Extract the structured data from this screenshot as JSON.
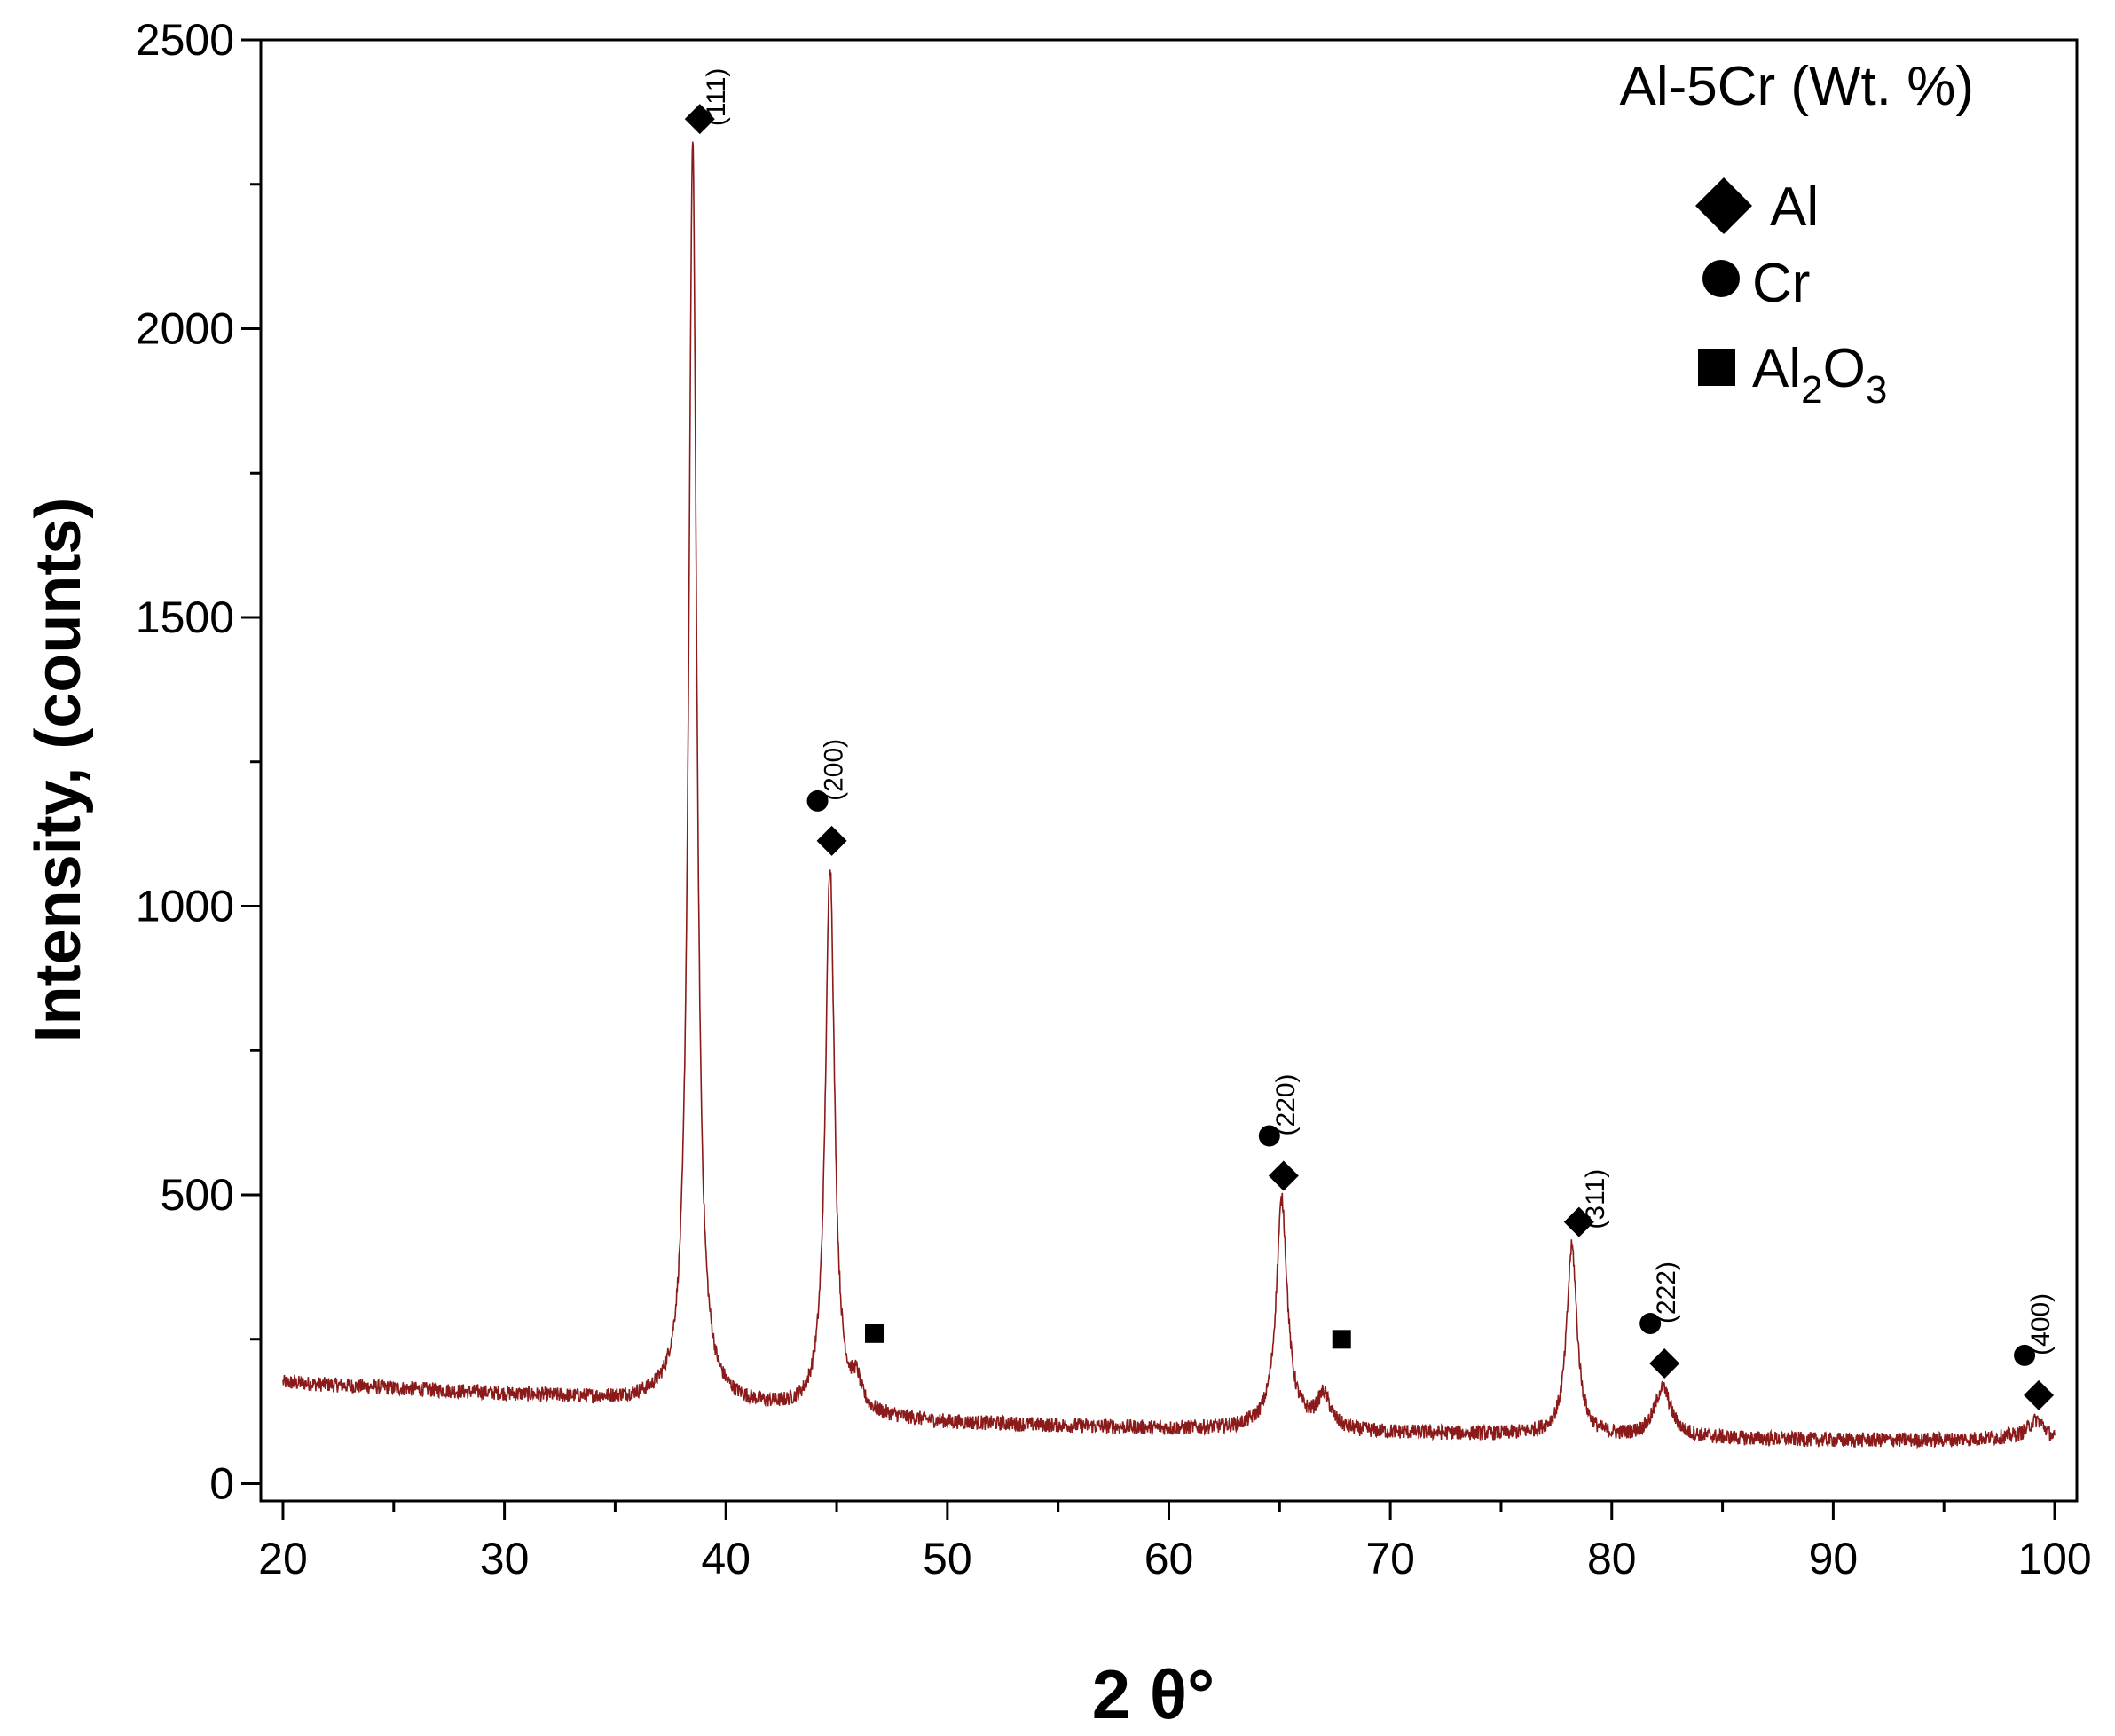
{
  "chart_data": {
    "type": "line",
    "title": "",
    "xlabel": "2 θ°",
    "ylabel": "Intensity, (counts)",
    "xlim": [
      19,
      101
    ],
    "ylim": [
      -30,
      2500
    ],
    "x_ticks": [
      20,
      30,
      40,
      50,
      60,
      70,
      80,
      90,
      100
    ],
    "y_ticks": [
      0,
      500,
      1000,
      1500,
      2000,
      2500
    ],
    "grid": false,
    "line_color": "#8b1a1a",
    "annotation_text": "Al-5Cr (Wt. %)",
    "legend_position": "top-right",
    "legend": [
      {
        "marker": "diamond",
        "label": "Al"
      },
      {
        "marker": "circle",
        "label": "Cr"
      },
      {
        "marker": "square",
        "label": "Al",
        "sub1": "2",
        "mid": "O",
        "sub2": "3"
      }
    ],
    "baseline": [
      [
        20,
        175
      ],
      [
        25,
        165
      ],
      [
        30,
        155
      ],
      [
        35,
        145
      ],
      [
        38,
        140
      ],
      [
        40,
        135
      ],
      [
        43,
        125
      ],
      [
        46,
        115
      ],
      [
        50,
        105
      ],
      [
        55,
        100
      ],
      [
        60,
        95
      ],
      [
        63,
        95
      ],
      [
        66,
        100
      ],
      [
        68,
        90
      ],
      [
        70,
        88
      ],
      [
        75,
        85
      ],
      [
        77,
        85
      ],
      [
        80,
        80
      ],
      [
        85,
        78
      ],
      [
        90,
        75
      ],
      [
        95,
        75
      ],
      [
        98,
        78
      ],
      [
        100,
        70
      ]
    ],
    "peaks": [
      {
        "x": 38.5,
        "y": 2320,
        "w": 0.22,
        "hkl": "(111)",
        "markers": [
          "diamond"
        ]
      },
      {
        "x": 44.7,
        "y": 1070,
        "w": 0.25,
        "hkl": "(200)",
        "markers": [
          "circle",
          "diamond"
        ]
      },
      {
        "x": 45.9,
        "y": 160,
        "w": 0.25,
        "hkl": "",
        "markers": [
          "square"
        ]
      },
      {
        "x": 65.1,
        "y": 490,
        "w": 0.3,
        "hkl": "(220)",
        "markers": [
          "circle",
          "diamond"
        ]
      },
      {
        "x": 67.0,
        "y": 150,
        "w": 0.35,
        "hkl": "",
        "markers": [
          "square"
        ]
      },
      {
        "x": 78.2,
        "y": 410,
        "w": 0.28,
        "hkl": "(311)",
        "markers": [
          "diamond"
        ]
      },
      {
        "x": 82.3,
        "y": 165,
        "w": 0.45,
        "hkl": "(222)",
        "markers": [
          "circle",
          "diamond"
        ]
      },
      {
        "x": 99.2,
        "y": 110,
        "w": 0.5,
        "hkl": "(400)",
        "markers": [
          "circle",
          "diamond"
        ]
      }
    ]
  }
}
